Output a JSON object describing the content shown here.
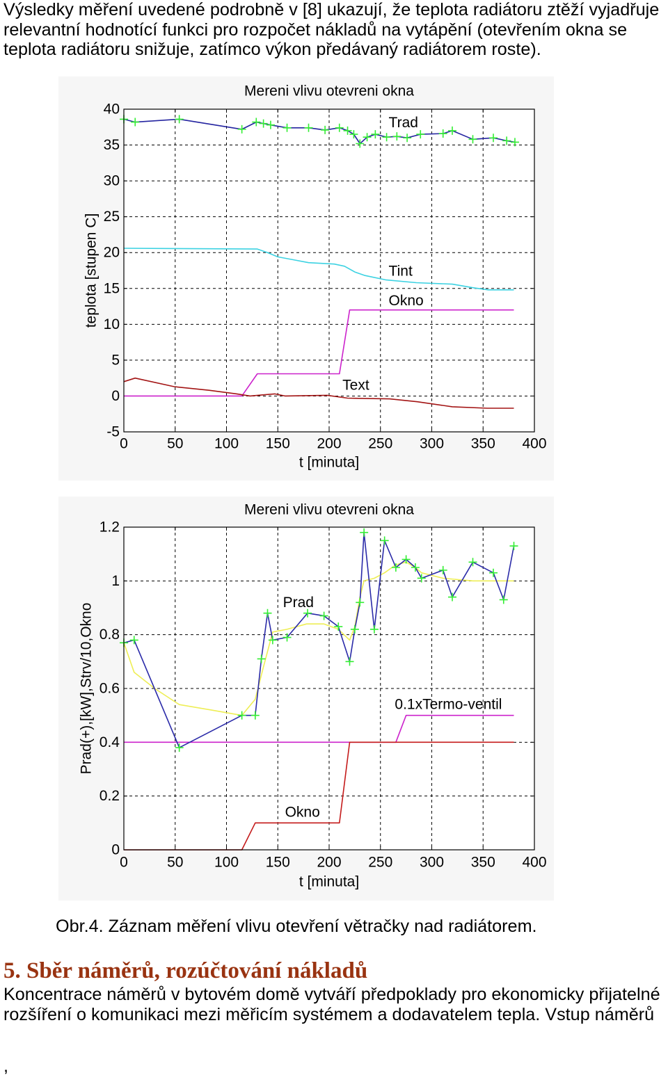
{
  "intro": {
    "lines": [
      "Výsledky měření uvedené podrobně v [8] ukazují, že teplota radiátoru ztěží vyjadřuje",
      "relevantní hodnotící funkci pro rozpočet nákladů na vytápění (otevřením okna se",
      "teplota radiátoru snižuje, zatímco výkon předávaný radiátorem roste)."
    ]
  },
  "figure": {
    "caption": "Obr.4. Záznam měření vlivu otevření větračky nad radiátorem."
  },
  "section": {
    "heading": "5. Sběr náměrů, rozúčtování nákladů",
    "heading_color": "#993311",
    "lines": [
      "Koncentrace náměrů v bytovém domě vytváří předpoklady pro ekonomicky přijatelné",
      "rozšíření o komunikaci mezi měřicím systémem a dodavatelem tepla. Vstup náměrů"
    ]
  },
  "page_end_mark": ",",
  "chart_data": [
    {
      "type": "line",
      "title": "Mereni vlivu otevreni okna",
      "xlabel": "t [minuta]",
      "ylabel": "teplota [stupen C]",
      "xlim": [
        0,
        400
      ],
      "ylim": [
        -5,
        40
      ],
      "xticks": [
        "0",
        "50",
        "100",
        "150",
        "200",
        "250",
        "300",
        "350",
        "400"
      ],
      "yticks": [
        "-5",
        "0",
        "5",
        "10",
        "15",
        "20",
        "25",
        "30",
        "35",
        "40"
      ],
      "grid": true,
      "series": [
        {
          "name": "Okno",
          "color": "#cc22cc",
          "x": [
            0,
            115,
            130,
            210,
            220,
            380
          ],
          "y": [
            0,
            0,
            3.1,
            3.1,
            12,
            12
          ],
          "label_x": 258,
          "label_y": 13.3
        },
        {
          "name": "Text",
          "color": "#a31414",
          "x": [
            0,
            11,
            49,
            83,
            110,
            123,
            147,
            157,
            198,
            218,
            259,
            286,
            320,
            354,
            380
          ],
          "y": [
            2.0,
            2.5,
            1.3,
            0.8,
            0.3,
            0.0,
            0.3,
            0.0,
            0.1,
            -0.3,
            -0.4,
            -0.8,
            -1.5,
            -1.7,
            -1.7
          ],
          "label_x": 213,
          "label_y": 1.5
        },
        {
          "name": "Tint",
          "color": "#3cd2e2",
          "x": [
            0,
            130,
            140,
            150,
            165,
            180,
            205,
            215,
            225,
            235,
            255,
            285,
            320,
            340,
            355,
            380
          ],
          "y": [
            20.6,
            20.5,
            20.0,
            19.4,
            19.0,
            18.6,
            18.4,
            18.1,
            17.3,
            16.8,
            16.2,
            15.8,
            15.6,
            15.1,
            14.8,
            14.8
          ],
          "label_x": 258,
          "label_y": 17.4
        },
        {
          "name": "Trad",
          "color": "#2424a0",
          "markers": true,
          "marker_color": "#33ee33",
          "x": [
            0,
            11,
            54,
            115,
            129,
            136,
            143,
            159,
            180,
            196,
            210,
            218,
            224,
            230,
            237,
            245,
            256,
            266,
            276,
            289,
            311,
            320,
            340,
            360,
            373,
            381
          ],
          "y": [
            38.6,
            38.2,
            38.6,
            37.2,
            38.2,
            38.0,
            37.8,
            37.4,
            37.4,
            37.1,
            37.4,
            37.0,
            36.5,
            35.2,
            36.1,
            36.5,
            36.1,
            36.2,
            36.0,
            36.5,
            36.6,
            37.0,
            35.8,
            36.0,
            35.6,
            35.4
          ],
          "label_x": 258,
          "label_y": 38.1
        }
      ]
    },
    {
      "type": "line",
      "title": "Mereni vlivu otevreni okna",
      "xlabel": "t [minuta]",
      "ylabel": "Prad(+),[kW],Strv/10,Okno",
      "xlim": [
        0,
        400
      ],
      "ylim": [
        0,
        1.2
      ],
      "xticks": [
        "0",
        "50",
        "100",
        "150",
        "200",
        "250",
        "300",
        "350",
        "400"
      ],
      "yticks": [
        "0",
        "0.2",
        "0.4",
        "0.6",
        "0.8",
        "1",
        "1.2"
      ],
      "grid": true,
      "series": [
        {
          "name": "0.1xTermo-ventil",
          "color": "#cc22cc",
          "x": [
            0,
            265,
            275,
            380
          ],
          "y": [
            0.4,
            0.4,
            0.5,
            0.5
          ],
          "label_x": 264,
          "label_y": 0.54
        },
        {
          "name": "Okno",
          "color": "#c41a1a",
          "x": [
            0,
            115,
            128,
            210,
            220,
            380
          ],
          "y": [
            0,
            0,
            0.1,
            0.1,
            0.4,
            0.4
          ],
          "label_x": 157,
          "label_y": 0.14
        },
        {
          "color": "#eeee55",
          "x": [
            0,
            10,
            30,
            54,
            85,
            115,
            128,
            136,
            145,
            159,
            178,
            195,
            209,
            220,
            225,
            230,
            234,
            244,
            254,
            265,
            275,
            284,
            290,
            311,
            340,
            380
          ],
          "y": [
            0.77,
            0.66,
            0.6,
            0.54,
            0.52,
            0.5,
            0.56,
            0.68,
            0.81,
            0.82,
            0.84,
            0.84,
            0.82,
            0.78,
            0.83,
            0.94,
            1.0,
            1.01,
            1.03,
            1.06,
            1.07,
            1.05,
            1.03,
            1.01,
            1.0,
            1.0
          ]
        },
        {
          "name": "Prad",
          "color": "#2a2aa8",
          "markers": true,
          "marker_color": "#33ee33",
          "x": [
            0,
            10,
            54,
            115,
            128,
            134,
            140,
            145,
            159,
            179,
            195,
            209,
            220,
            225,
            230,
            234,
            244,
            254,
            265,
            275,
            284,
            290,
            311,
            320,
            340,
            360,
            370,
            380
          ],
          "y": [
            0.77,
            0.78,
            0.38,
            0.5,
            0.5,
            0.71,
            0.88,
            0.78,
            0.79,
            0.88,
            0.87,
            0.83,
            0.7,
            0.82,
            0.92,
            1.18,
            0.82,
            1.15,
            1.05,
            1.08,
            1.05,
            1.01,
            1.04,
            0.94,
            1.07,
            1.03,
            0.93,
            1.13
          ],
          "label_x": 155,
          "label_y": 0.92
        }
      ]
    }
  ]
}
